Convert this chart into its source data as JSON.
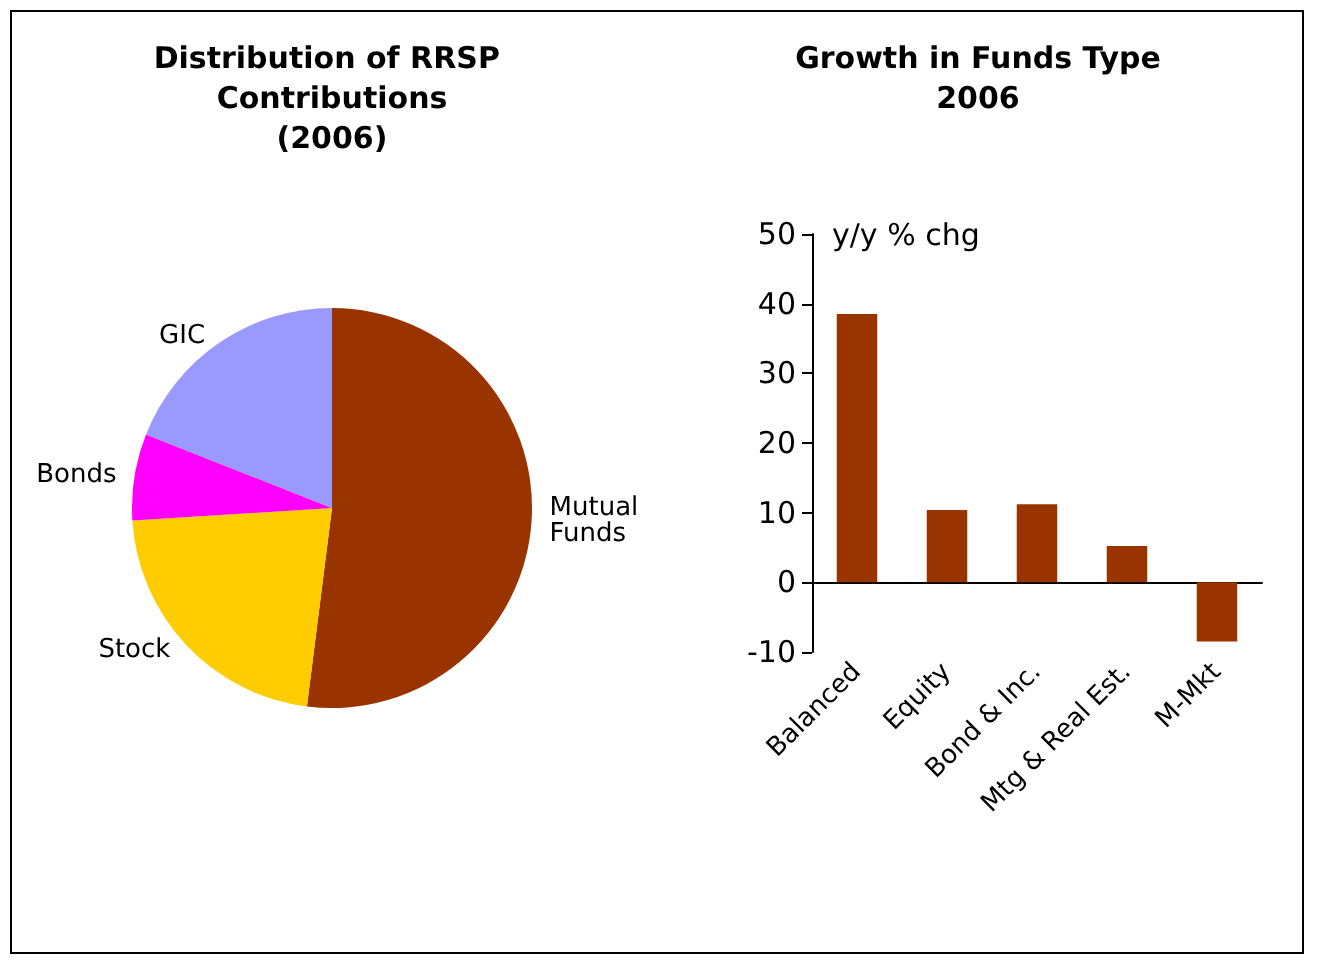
{
  "chart_data": [
    {
      "type": "pie",
      "title": "Distribution of RRSP Contributions\n(2006)",
      "categories": [
        "Mutual Funds",
        "Stock",
        "Bonds",
        "GIC"
      ],
      "values": [
        52,
        22,
        7,
        19
      ],
      "colors": [
        "#993300",
        "#ffcc00",
        "#ff00ff",
        "#9999ff"
      ],
      "legend": false
    },
    {
      "type": "bar",
      "title": "Growth in Funds Type\n2006",
      "ylabel": "y/y % chg",
      "categories": [
        "Balanced",
        "Equity",
        "Bond & Inc.",
        "Mtg & Real Est.",
        "M-Mkt"
      ],
      "values": [
        38.5,
        10.4,
        11.2,
        5.2,
        -8.5
      ],
      "color": "#993300",
      "ylim": [
        -10,
        50
      ],
      "yticks": [
        -10,
        0,
        10,
        20,
        30,
        40,
        50
      ],
      "legend": false
    }
  ]
}
